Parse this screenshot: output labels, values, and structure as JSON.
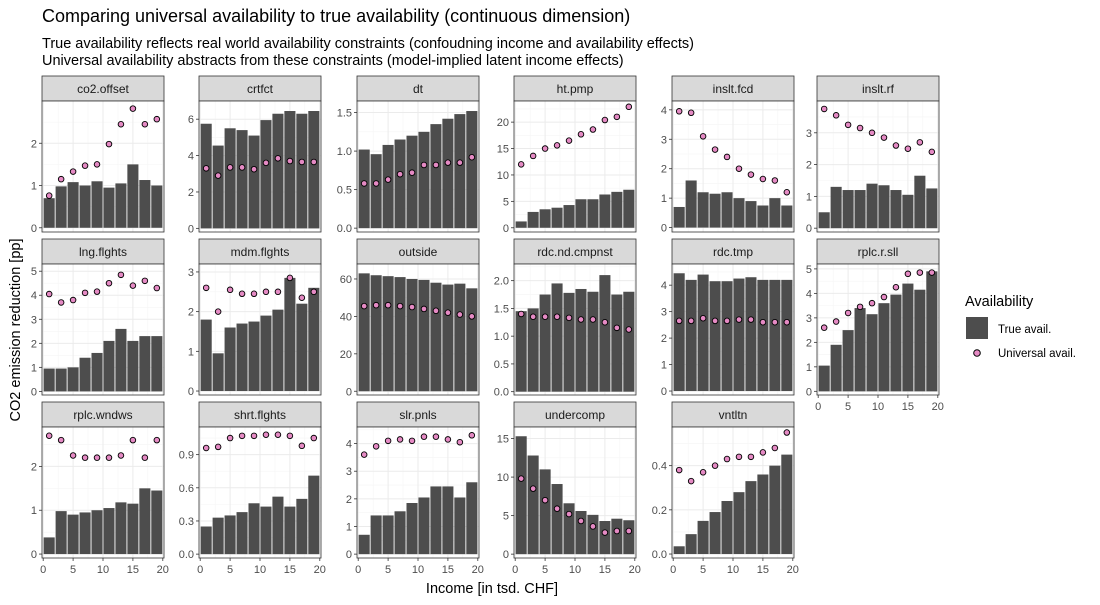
{
  "title": "Comparing universal availability to true availability (continuous dimension)",
  "subtitle_lines": [
    "True availability reflects real world availability constraints (confoudning income and availability effects)",
    "Universal availability abstracts from these constraints (model-implied latent income effects)"
  ],
  "xlabel": "Income [in tsd. CHF]",
  "ylabel": "CO2 emission reduction [pp]",
  "legend": {
    "title": "Availability",
    "items": [
      "True avail.",
      "Universal avail."
    ]
  },
  "colors": {
    "bar": "#4d4d4d",
    "point_fill": "#e58ac4",
    "point_stroke": "#000000",
    "strip_fill": "#d9d9d9",
    "grid_major": "#ebebeb",
    "grid_minor": "#f5f5f5",
    "panel_border": "#333333"
  },
  "chart_data": {
    "type": "bar",
    "layout": "facet_wrap",
    "facet_columns": 6,
    "x": [
      1,
      3,
      5,
      7,
      9,
      11,
      13,
      15,
      17,
      19
    ],
    "xlim": [
      -0.2,
      20.2
    ],
    "x_ticks": [
      0,
      5,
      10,
      15,
      20
    ],
    "grid": true,
    "legend_position": "right",
    "series": [
      {
        "name": "True avail.",
        "kind": "bar"
      },
      {
        "name": "Universal avail.",
        "kind": "point"
      }
    ],
    "panels": [
      {
        "label": "co2.offset",
        "ylim": [
          -0.1,
          3.0
        ],
        "yticks": [
          0,
          1,
          2
        ],
        "ytick_labels": [
          "0",
          "1",
          "2"
        ],
        "true_avail": [
          0.7,
          0.98,
          1.08,
          1.0,
          1.1,
          0.95,
          1.05,
          1.5,
          1.13,
          1.0
        ],
        "universal_avail": [
          0.76,
          1.15,
          1.33,
          1.47,
          1.5,
          1.98,
          2.45,
          2.82,
          2.45,
          2.57
        ]
      },
      {
        "label": "crtfct",
        "ylim": [
          -0.2,
          7.0
        ],
        "yticks": [
          0,
          2,
          4,
          6
        ],
        "ytick_labels": [
          "0",
          "2",
          "4",
          "6"
        ],
        "true_avail": [
          5.75,
          4.55,
          5.5,
          5.4,
          5.1,
          5.95,
          6.3,
          6.45,
          6.3,
          6.45
        ],
        "universal_avail": [
          3.3,
          2.9,
          3.35,
          3.35,
          3.25,
          3.6,
          3.85,
          3.7,
          3.65,
          3.65
        ]
      },
      {
        "label": "dt",
        "ylim": [
          -0.05,
          1.65
        ],
        "yticks": [
          0,
          0.5,
          1.0,
          1.5
        ],
        "ytick_labels": [
          "0.0",
          "0.5",
          "1.0",
          "1.5"
        ],
        "true_avail": [
          1.02,
          0.96,
          1.08,
          1.15,
          1.2,
          1.25,
          1.35,
          1.42,
          1.48,
          1.52
        ],
        "universal_avail": [
          0.58,
          0.58,
          0.63,
          0.7,
          0.72,
          0.82,
          0.82,
          0.85,
          0.85,
          0.92
        ]
      },
      {
        "label": "ht.pmp",
        "ylim": [
          -0.8,
          24.0
        ],
        "yticks": [
          0,
          5,
          10,
          15,
          20
        ],
        "ytick_labels": [
          "0",
          "5",
          "10",
          "15",
          "20"
        ],
        "true_avail": [
          1.2,
          3.0,
          3.5,
          3.8,
          4.3,
          5.4,
          5.4,
          6.3,
          6.8,
          7.2
        ],
        "universal_avail": [
          12.0,
          13.6,
          15.0,
          15.6,
          16.5,
          17.7,
          18.6,
          20.4,
          21.0,
          22.9
        ]
      },
      {
        "label": "inslt.fcd",
        "ylim": [
          -0.15,
          4.3
        ],
        "yticks": [
          0,
          1,
          2,
          3,
          4
        ],
        "ytick_labels": [
          "0",
          "1",
          "2",
          "3",
          "4"
        ],
        "true_avail": [
          0.7,
          1.6,
          1.2,
          1.15,
          1.2,
          1.0,
          0.9,
          0.75,
          1.0,
          0.75
        ],
        "universal_avail": [
          3.95,
          3.9,
          3.1,
          2.65,
          2.4,
          2.0,
          1.8,
          1.65,
          1.6,
          1.2
        ]
      },
      {
        "label": "inslt.rf",
        "ylim": [
          -0.12,
          4.0
        ],
        "yticks": [
          0,
          1,
          2,
          3
        ],
        "ytick_labels": [
          "0",
          "1",
          "2",
          "3"
        ],
        "true_avail": [
          0.5,
          1.3,
          1.2,
          1.2,
          1.4,
          1.35,
          1.2,
          1.05,
          1.65,
          1.25
        ],
        "universal_avail": [
          3.75,
          3.55,
          3.25,
          3.15,
          3.0,
          2.85,
          2.6,
          2.5,
          2.7,
          2.4
        ]
      },
      {
        "label": "lng.flghts",
        "ylim": [
          -0.15,
          5.3
        ],
        "yticks": [
          0,
          1,
          2,
          3,
          4,
          5
        ],
        "ytick_labels": [
          "0",
          "1",
          "2",
          "3",
          "4",
          "5"
        ],
        "true_avail": [
          0.95,
          0.95,
          1.0,
          1.4,
          1.6,
          2.1,
          2.6,
          2.1,
          2.3,
          2.3
        ],
        "universal_avail": [
          4.05,
          3.7,
          3.8,
          4.1,
          4.15,
          4.5,
          4.85,
          4.4,
          4.6,
          4.3
        ]
      },
      {
        "label": "mdm.flghts",
        "ylim": [
          -0.1,
          3.2
        ],
        "yticks": [
          0,
          1,
          2,
          3
        ],
        "ytick_labels": [
          "0",
          "1",
          "2",
          "3"
        ],
        "true_avail": [
          1.8,
          0.95,
          1.6,
          1.7,
          1.75,
          1.9,
          2.05,
          2.85,
          2.2,
          2.6
        ],
        "universal_avail": [
          2.6,
          2.0,
          2.55,
          2.45,
          2.45,
          2.5,
          2.5,
          2.85,
          2.35,
          2.5
        ]
      },
      {
        "label": "outside",
        "ylim": [
          -2.0,
          68.0
        ],
        "yticks": [
          0,
          20,
          40,
          60
        ],
        "ytick_labels": [
          "0",
          "20",
          "40",
          "60"
        ],
        "true_avail": [
          63.0,
          62.0,
          61.5,
          61.0,
          60.0,
          59.5,
          58.0,
          57.0,
          57.5,
          55.0
        ],
        "universal_avail": [
          45.5,
          46.0,
          46.0,
          45.5,
          45.0,
          44.0,
          43.0,
          42.0,
          41.0,
          40.0
        ]
      },
      {
        "label": "rdc.nd.cmpnst",
        "ylim": [
          -0.06,
          2.3
        ],
        "yticks": [
          0,
          0.5,
          1.0,
          1.5,
          2.0
        ],
        "ytick_labels": [
          "0.0",
          "0.5",
          "1.0",
          "1.5",
          "2.0"
        ],
        "true_avail": [
          1.45,
          1.5,
          1.75,
          1.95,
          1.78,
          1.85,
          1.8,
          2.1,
          1.75,
          1.8
        ],
        "universal_avail": [
          1.4,
          1.35,
          1.35,
          1.35,
          1.33,
          1.3,
          1.3,
          1.25,
          1.15,
          1.12
        ]
      },
      {
        "label": "rdc.tmp",
        "ylim": [
          -0.15,
          4.8
        ],
        "yticks": [
          0,
          1,
          2,
          3,
          4
        ],
        "ytick_labels": [
          "0",
          "1",
          "2",
          "3",
          "4"
        ],
        "true_avail": [
          4.45,
          4.2,
          4.4,
          4.15,
          4.15,
          4.25,
          4.3,
          4.2,
          4.2,
          4.2
        ],
        "universal_avail": [
          2.65,
          2.65,
          2.75,
          2.65,
          2.65,
          2.7,
          2.7,
          2.6,
          2.6,
          2.6
        ]
      },
      {
        "label": "rplc.r.sll",
        "ylim": [
          -0.15,
          5.2
        ],
        "yticks": [
          0,
          1,
          2,
          3,
          4,
          5
        ],
        "ytick_labels": [
          "0",
          "1",
          "2",
          "3",
          "4",
          "5"
        ],
        "true_avail": [
          1.05,
          1.9,
          2.5,
          3.4,
          3.15,
          3.6,
          3.95,
          4.4,
          4.15,
          4.9
        ],
        "universal_avail": [
          2.6,
          2.85,
          3.2,
          3.45,
          3.6,
          3.85,
          4.25,
          4.8,
          4.85,
          4.85
        ]
      },
      {
        "label": "rplc.wndws",
        "ylim": [
          -0.09,
          2.9
        ],
        "yticks": [
          0,
          1,
          2
        ],
        "ytick_labels": [
          "0",
          "1",
          "2"
        ],
        "true_avail": [
          0.38,
          0.98,
          0.9,
          0.95,
          1.0,
          1.05,
          1.18,
          1.15,
          1.5,
          1.45
        ],
        "universal_avail": [
          2.7,
          2.6,
          2.25,
          2.2,
          2.2,
          2.2,
          2.25,
          2.6,
          2.2,
          2.6
        ]
      },
      {
        "label": "shrt.flghts",
        "ylim": [
          -0.035,
          1.15
        ],
        "yticks": [
          0,
          0.3,
          0.6,
          0.9
        ],
        "ytick_labels": [
          "0.0",
          "0.3",
          "0.6",
          "0.9"
        ],
        "true_avail": [
          0.25,
          0.33,
          0.35,
          0.38,
          0.46,
          0.43,
          0.52,
          0.43,
          0.5,
          0.71
        ],
        "universal_avail": [
          0.96,
          0.97,
          1.05,
          1.07,
          1.07,
          1.08,
          1.08,
          1.07,
          0.98,
          1.05
        ]
      },
      {
        "label": "slr.pnls",
        "ylim": [
          -0.14,
          4.6
        ],
        "yticks": [
          0,
          1,
          2,
          3,
          4
        ],
        "ytick_labels": [
          "0",
          "1",
          "2",
          "3",
          "4"
        ],
        "true_avail": [
          0.7,
          1.4,
          1.4,
          1.55,
          1.85,
          2.05,
          2.45,
          2.45,
          2.05,
          2.6
        ],
        "universal_avail": [
          3.6,
          3.9,
          4.1,
          4.15,
          4.1,
          4.25,
          4.25,
          4.15,
          4.05,
          4.3
        ]
      },
      {
        "label": "undercomp",
        "ylim": [
          -0.5,
          16.5
        ],
        "yticks": [
          0,
          5,
          10,
          15
        ],
        "ytick_labels": [
          "0",
          "5",
          "10",
          "15"
        ],
        "true_avail": [
          15.3,
          12.8,
          11.0,
          9.1,
          6.6,
          5.6,
          5.1,
          4.3,
          4.6,
          4.4
        ],
        "universal_avail": [
          9.8,
          8.5,
          7.0,
          5.9,
          5.2,
          4.3,
          3.6,
          2.8,
          3.0,
          3.0
        ]
      },
      {
        "label": "vntltn",
        "ylim": [
          -0.018,
          0.575
        ],
        "yticks": [
          0,
          0.2,
          0.4
        ],
        "ytick_labels": [
          "0.0",
          "0.2",
          "0.4"
        ],
        "true_avail": [
          0.035,
          0.09,
          0.15,
          0.19,
          0.24,
          0.28,
          0.33,
          0.36,
          0.4,
          0.45
        ],
        "universal_avail": [
          0.38,
          0.33,
          0.37,
          0.4,
          0.43,
          0.44,
          0.44,
          0.46,
          0.48,
          0.55
        ]
      }
    ]
  }
}
